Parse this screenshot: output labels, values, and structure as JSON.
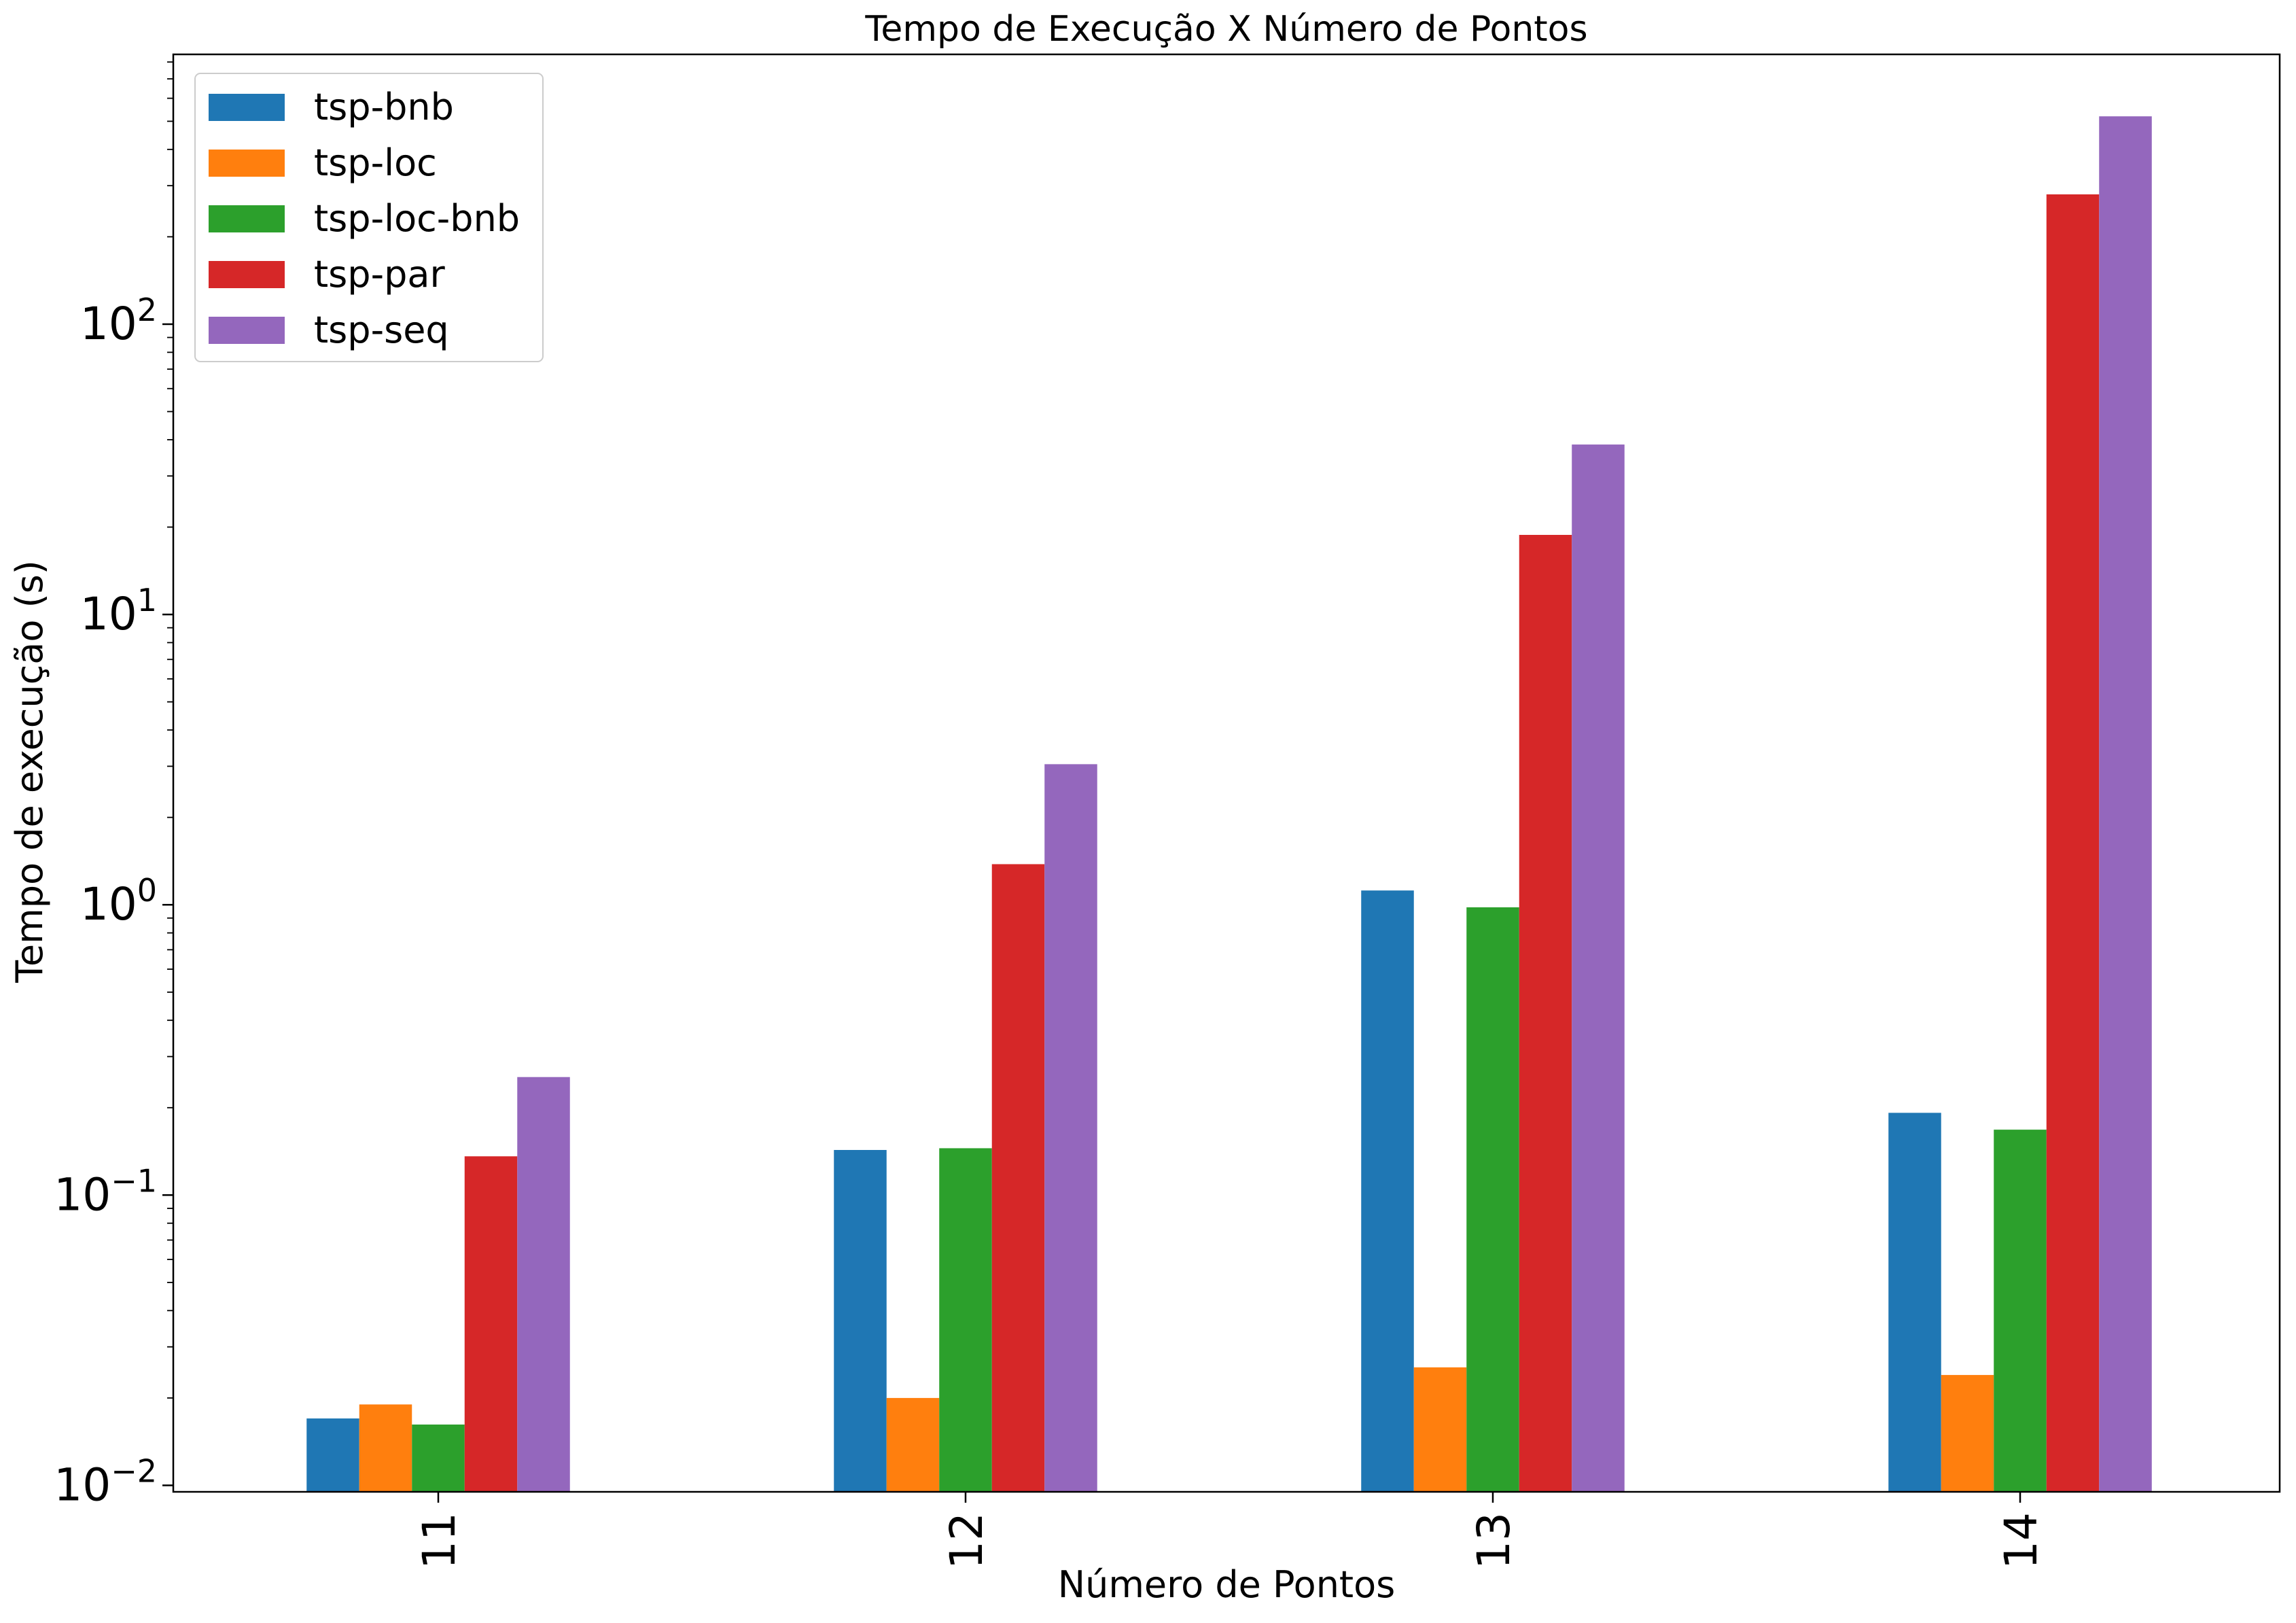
{
  "chart_data": {
    "type": "bar",
    "title": "Tempo de Execução X Número de Pontos",
    "xlabel": "Número de Pontos",
    "ylabel": "Tempo de execução (s)",
    "categories": [
      "11",
      "12",
      "13",
      "14"
    ],
    "y_scale": "log",
    "ylim": [
      0.0095,
      850
    ],
    "y_ticks": [
      {
        "value": 0.01,
        "base": "10",
        "exp": "−2"
      },
      {
        "value": 0.1,
        "base": "10",
        "exp": "−1"
      },
      {
        "value": 1,
        "base": "10",
        "exp": "0"
      },
      {
        "value": 10,
        "base": "10",
        "exp": "1"
      },
      {
        "value": 100,
        "base": "10",
        "exp": "2"
      }
    ],
    "grid": false,
    "legend_position": "top-left",
    "series": [
      {
        "name": "tsp-bnb",
        "color": "#1f77b4",
        "values": [
          0.017,
          0.143,
          1.12,
          0.192
        ]
      },
      {
        "name": "tsp-loc",
        "color": "#ff7f0e",
        "values": [
          0.019,
          0.02,
          0.0255,
          0.024
        ]
      },
      {
        "name": "tsp-loc-bnb",
        "color": "#2ca02c",
        "values": [
          0.0162,
          0.145,
          0.98,
          0.168
        ]
      },
      {
        "name": "tsp-par",
        "color": "#d62728",
        "values": [
          0.136,
          1.38,
          18.8,
          280
        ]
      },
      {
        "name": "tsp-seq",
        "color": "#9467bd",
        "values": [
          0.255,
          3.05,
          38.5,
          520
        ]
      }
    ]
  }
}
